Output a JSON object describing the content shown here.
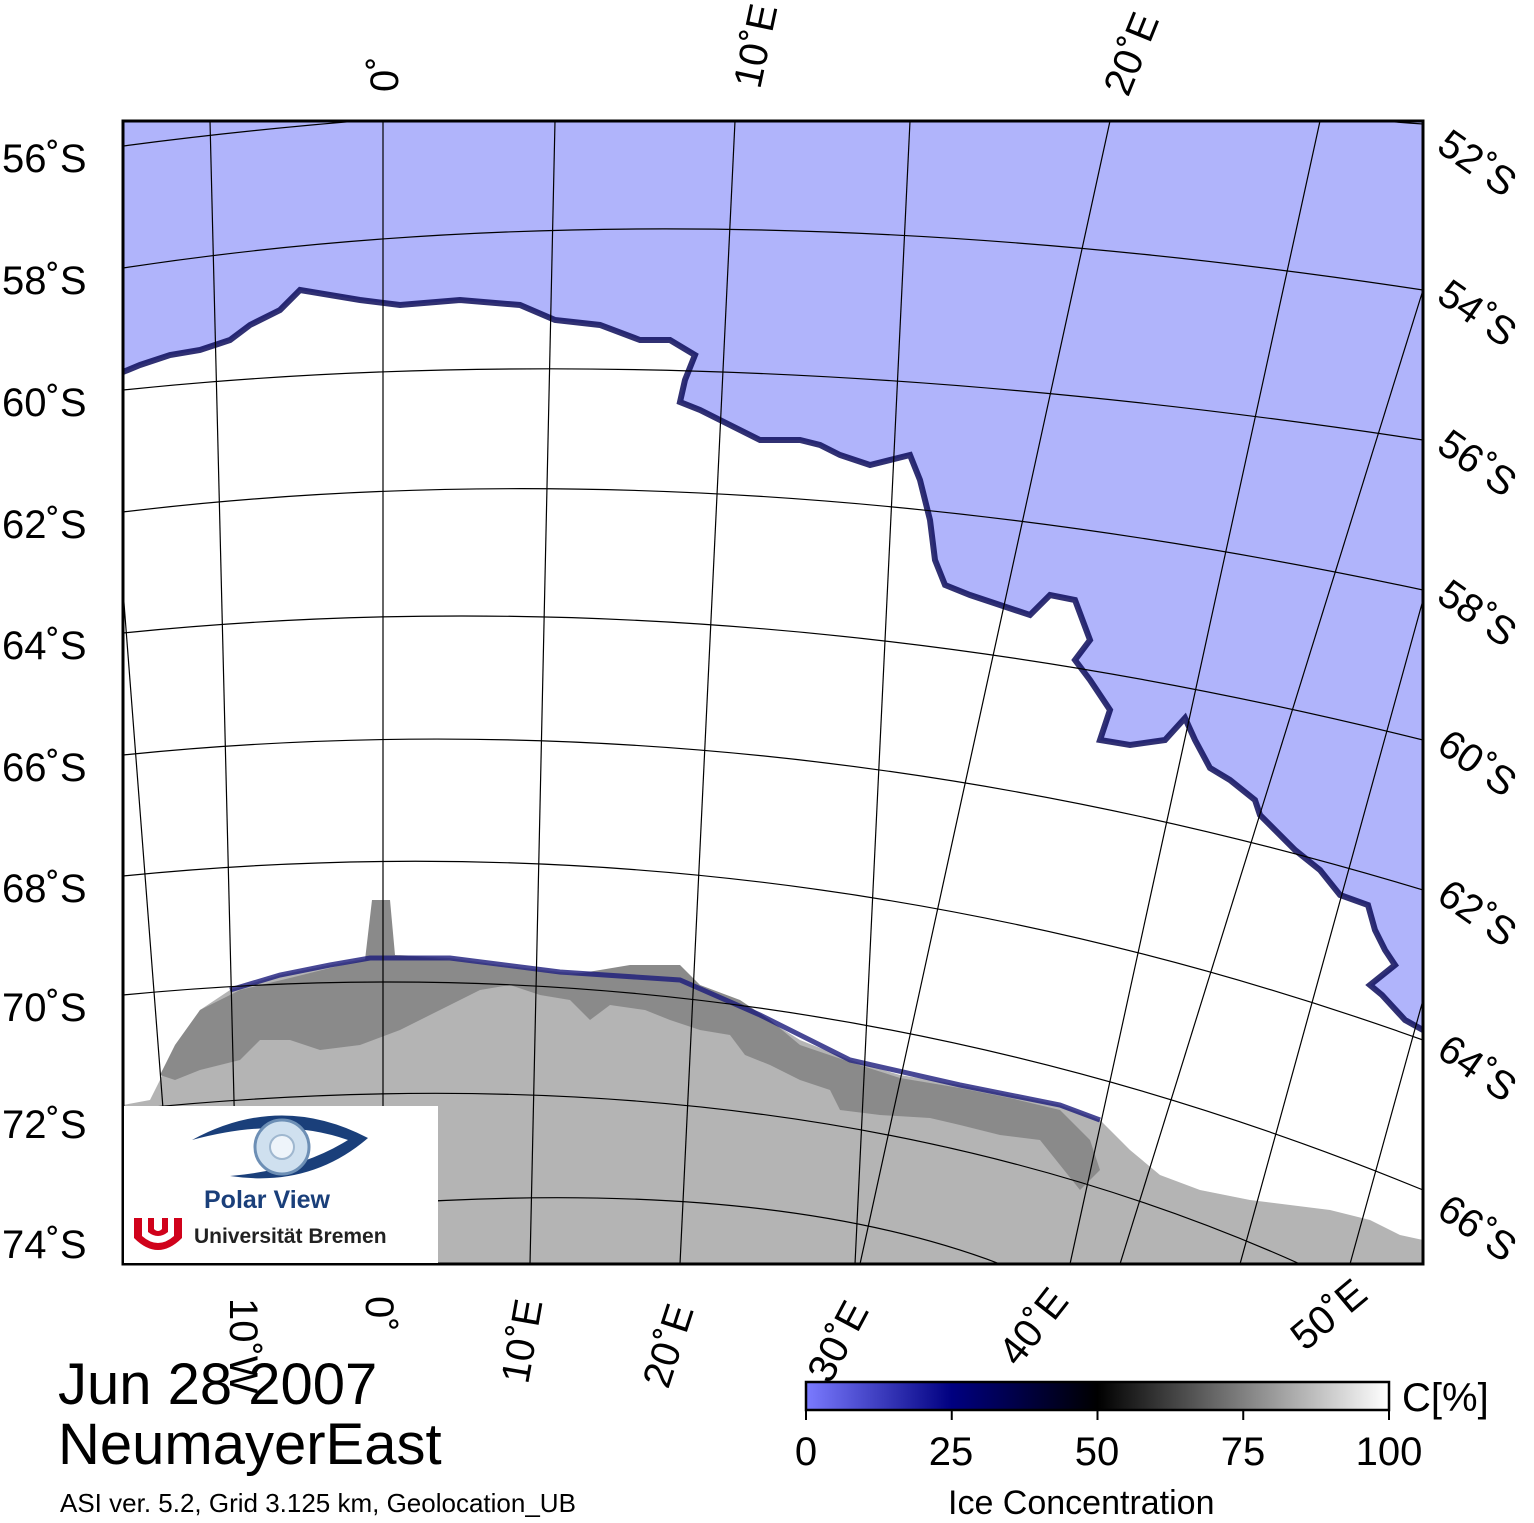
{
  "map": {
    "date": "Jun 28 2007",
    "region": "NeumayerEast",
    "meta": "ASI ver. 5.2,  Grid 3.125 km, Geolocation_UB",
    "lat_labels_left": [
      "56˚S",
      "58˚S",
      "60˚S",
      "62˚S",
      "64˚S",
      "66˚S",
      "68˚S",
      "70˚S",
      "72˚S",
      "74˚S"
    ],
    "lat_labels_right": [
      "52˚S",
      "54˚S",
      "56˚S",
      "58˚S",
      "60˚S",
      "62˚S",
      "64˚S",
      "66˚S"
    ],
    "lon_labels_top": [
      "0˚",
      "10˚E",
      "20˚E"
    ],
    "lon_labels_bottom": [
      "10˚W",
      "0˚",
      "10˚E",
      "20˚E",
      "30˚E",
      "40˚E",
      "50˚E"
    ],
    "colors": {
      "open_water": "#b0b4fb",
      "land": "#b4b4b4",
      "ice_shelf": "#8a8a8a",
      "sea_ice": "#ffffff",
      "frame": "#000000"
    }
  },
  "logo": {
    "title": "Polar View",
    "university": "Universität Bremen",
    "icons": [
      "eye-icon",
      "bremen-crest-icon"
    ]
  },
  "colorbar": {
    "title": "Ice Concentration",
    "unit": "C[%]",
    "ticks": [
      "0",
      "25",
      "50",
      "75",
      "100"
    ],
    "stops": [
      "#7b7bff",
      "#000080",
      "#000000",
      "#808080",
      "#ffffff"
    ]
  }
}
